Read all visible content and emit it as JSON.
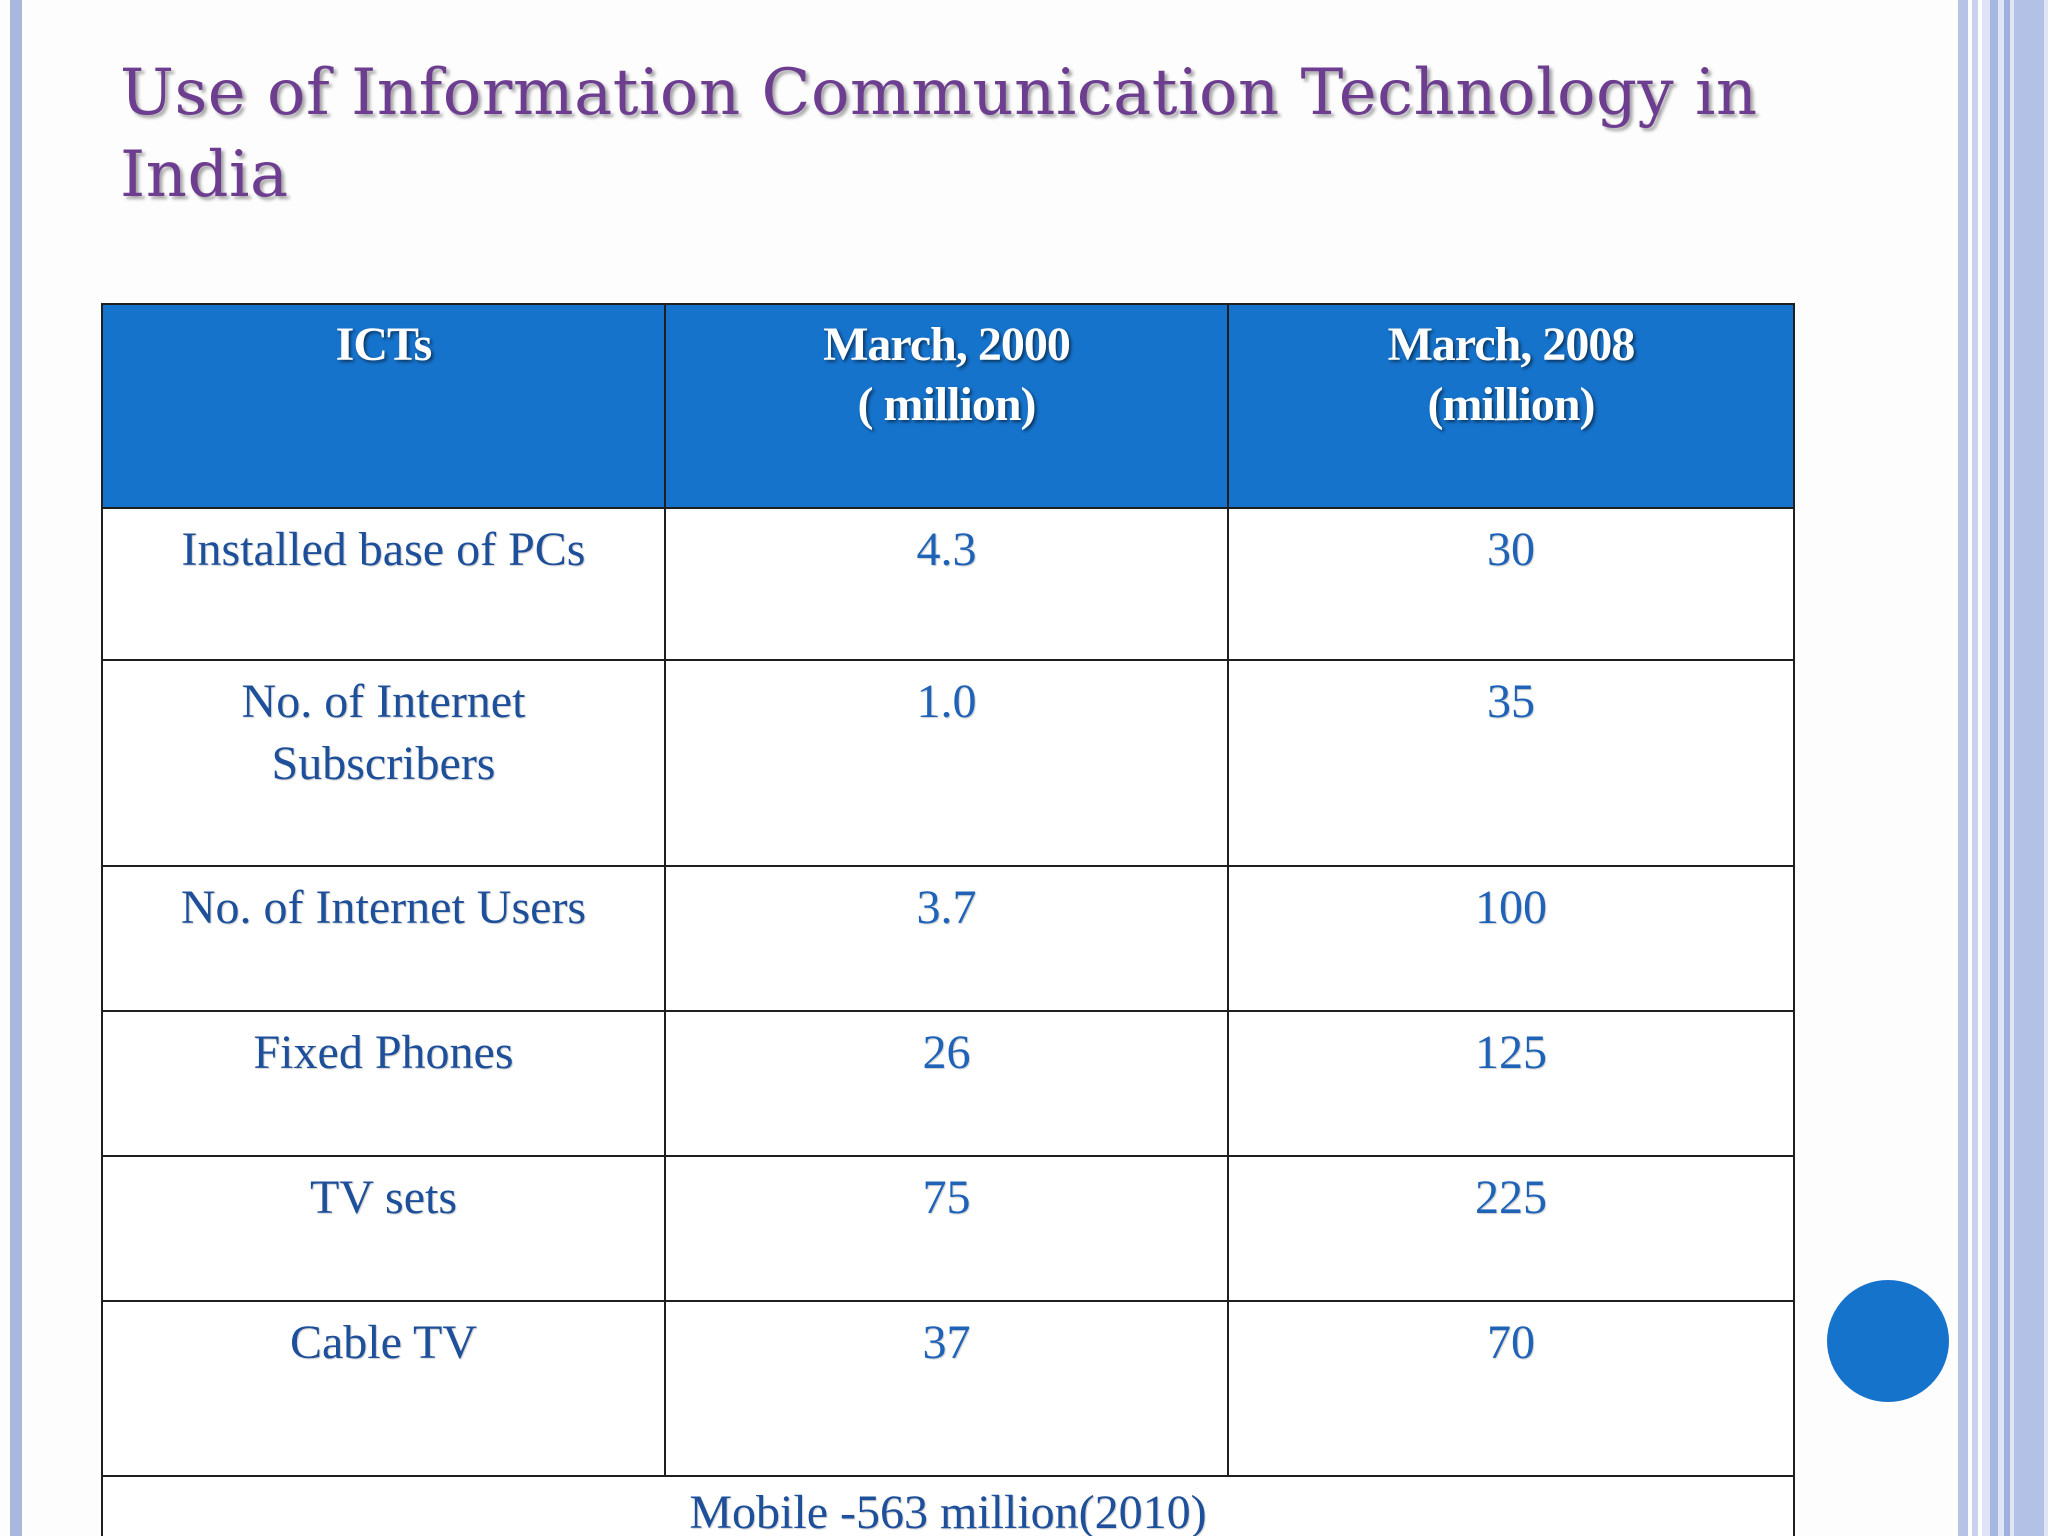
{
  "slide": {
    "title": "Use of Information Communication Technology in India"
  },
  "table": {
    "headers": [
      {
        "line1": "ICTs",
        "line2": ""
      },
      {
        "line1": "March, 2000",
        "line2": "( million)"
      },
      {
        "line1": "March, 2008",
        "line2": "(million)"
      }
    ],
    "rows": [
      {
        "ict": "Installed base of PCs",
        "m2000": "4.3",
        "m2008": "30"
      },
      {
        "ict_line1": "No. of Internet",
        "ict_line2": "Subscribers",
        "m2000": "1.0",
        "m2008": "35"
      },
      {
        "ict": "No. of Internet Users",
        "m2000": "3.7",
        "m2008": "100"
      },
      {
        "ict": "Fixed Phones",
        "m2000": "26",
        "m2008": "125"
      },
      {
        "ict": "TV sets",
        "m2000": "75",
        "m2008": "225"
      },
      {
        "ict": "Cable TV",
        "m2000": "37",
        "m2008": "70"
      }
    ],
    "footer": "Mobile -563 million(2010)"
  },
  "colors": {
    "title": "#6d3d8f",
    "header_bg": "#1673cc",
    "cell_text": "#1f63b8",
    "accent_circle": "#1673cc"
  }
}
